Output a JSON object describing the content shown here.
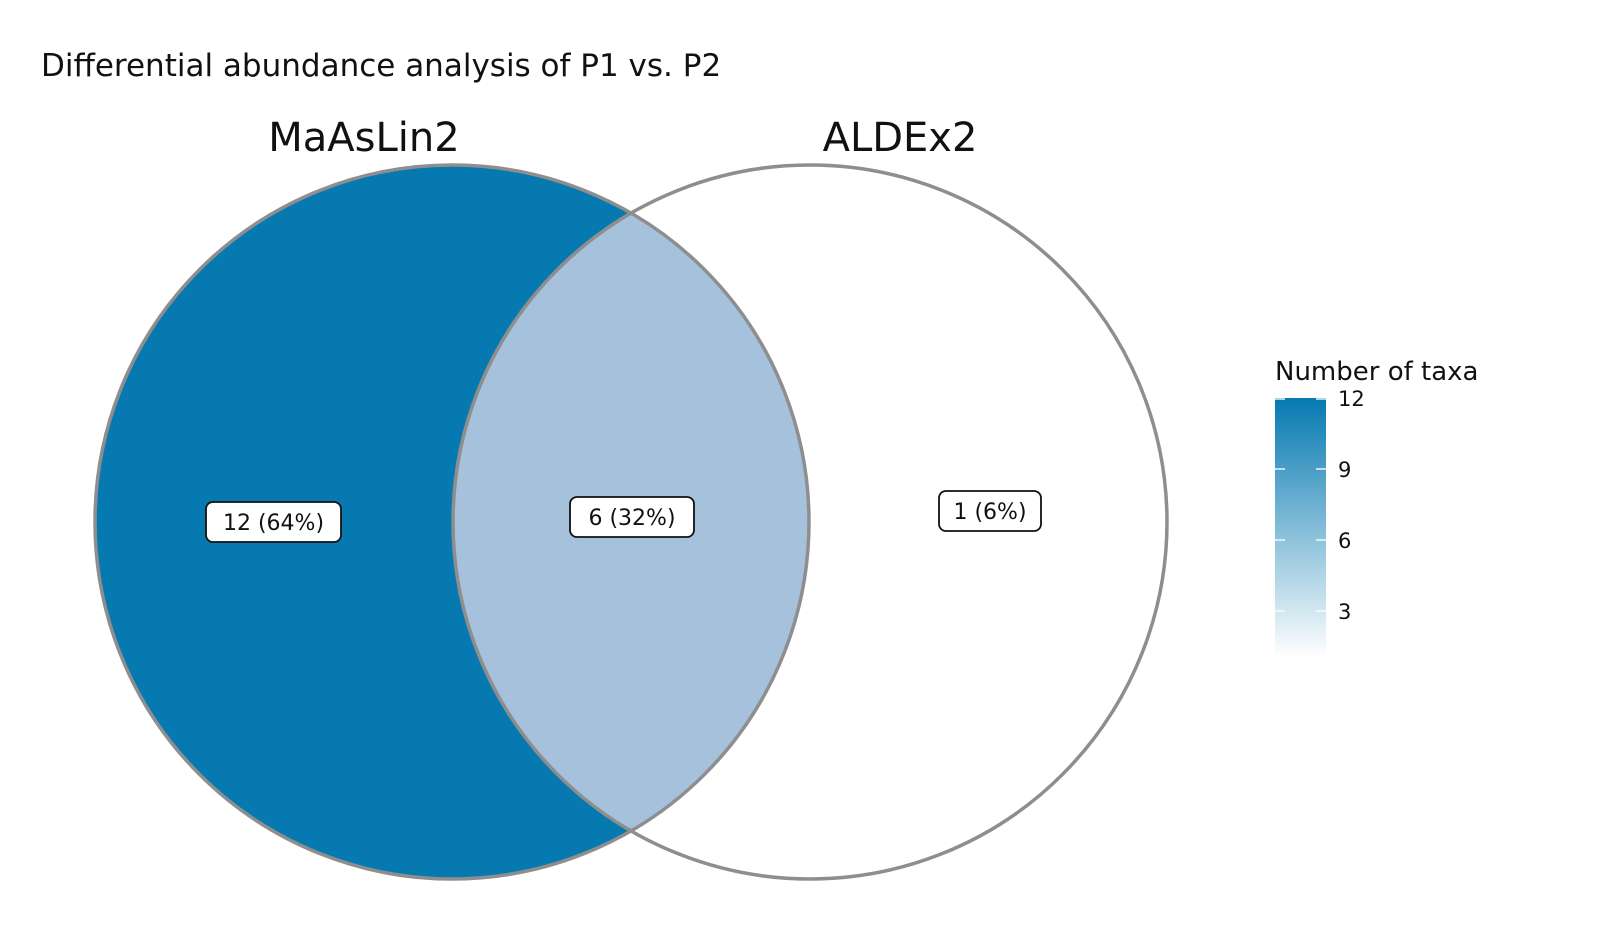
{
  "title": "Differential abundance analysis of P1 vs. P2",
  "sets": [
    {
      "name": "MaAsLin2"
    },
    {
      "name": "ALDEx2"
    }
  ],
  "regions": [
    {
      "id": "maaslin2-only",
      "label": "12 (64%)",
      "count": 12,
      "percent": 64
    },
    {
      "id": "intersection",
      "label": "6 (32%)",
      "count": 6,
      "percent": 32
    },
    {
      "id": "aldex2-only",
      "label": "1 (6%)",
      "count": 1,
      "percent": 6
    }
  ],
  "legend": {
    "title": "Number of taxa",
    "ticks": [
      "12",
      "9",
      "6",
      "3"
    ],
    "color_high": "#0679b1",
    "color_low": "#ffffff"
  },
  "colors": {
    "outline": "#8e8e8e",
    "maaslin2_only": "#0679b1",
    "intersection": "#a5c1db",
    "aldex2_only": "#ffffff"
  }
}
